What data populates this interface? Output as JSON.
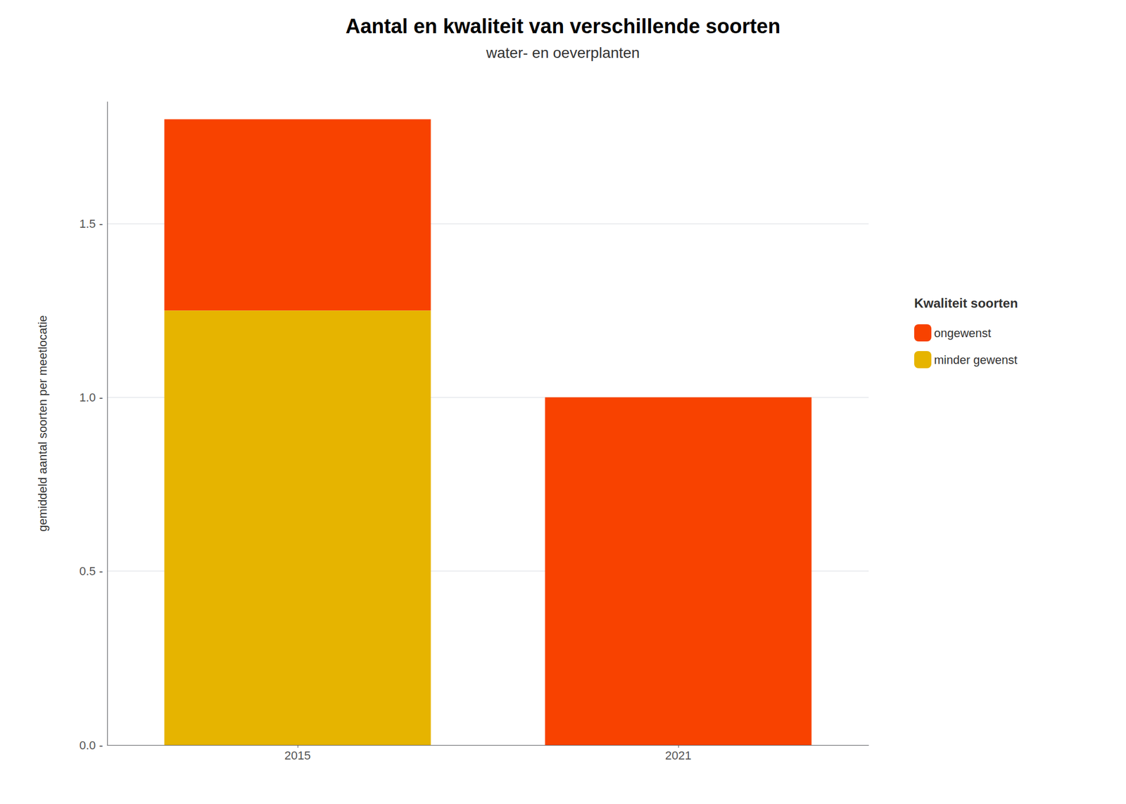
{
  "chart_data": {
    "type": "bar",
    "title": "Aantal en kwaliteit van verschillende soorten",
    "subtitle": "water- en oeverplanten",
    "ylabel": "gemiddeld aantal soorten per meetlocatie",
    "categories": [
      "2015",
      "2021"
    ],
    "series": [
      {
        "name": "minder gewenst",
        "color": "#E6B400",
        "values": [
          1.25,
          0.0
        ]
      },
      {
        "name": "ongewenst",
        "color": "#F84200",
        "values": [
          0.55,
          1.0
        ]
      }
    ],
    "stacked": true,
    "ylim": [
      0,
      1.85
    ],
    "yticks": [
      {
        "value": 0.0,
        "label": "0.0 -"
      },
      {
        "value": 0.5,
        "label": "0.5 -"
      },
      {
        "value": 1.0,
        "label": "1.0 -"
      },
      {
        "value": 1.5,
        "label": "1.5 -"
      }
    ],
    "grid": true,
    "legend": "right",
    "legend_title": "Kwaliteit soorten"
  }
}
